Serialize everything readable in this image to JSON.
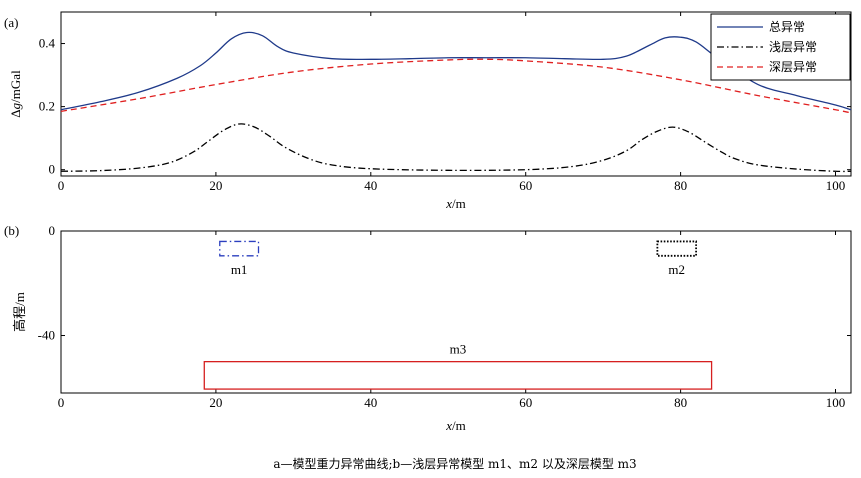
{
  "caption": "a—模型重力异常曲线;b—浅层异常模型 m1、m2 以及深层模型 m3",
  "chart_data": [
    {
      "type": "line",
      "panel_label": "(a)",
      "xlabel": "x/m",
      "ylabel": "Δg/mGal",
      "xlim": [
        0,
        102
      ],
      "ylim": [
        -0.02,
        0.5
      ],
      "xticks": [
        0,
        20,
        40,
        60,
        80,
        100
      ],
      "yticks": [
        0,
        0.2,
        0.4
      ],
      "xtick_labels": [
        "0",
        "20",
        "40",
        "60",
        "80",
        "100"
      ],
      "ytick_labels": [
        "0",
        "0.2",
        "0.4"
      ],
      "legend_position": "top-right",
      "series": [
        {
          "name": "总异常",
          "color": "#1f3a8a",
          "style": "solid",
          "x": [
            0,
            5,
            10,
            15,
            18,
            20,
            22,
            24,
            26,
            28,
            30,
            35,
            40,
            45,
            50,
            55,
            60,
            65,
            70,
            73,
            76,
            78,
            80,
            82,
            85,
            90,
            95,
            100,
            102
          ],
          "y": [
            0.19,
            0.215,
            0.245,
            0.29,
            0.33,
            0.37,
            0.415,
            0.435,
            0.425,
            0.39,
            0.37,
            0.352,
            0.35,
            0.352,
            0.355,
            0.355,
            0.355,
            0.352,
            0.35,
            0.36,
            0.395,
            0.418,
            0.42,
            0.405,
            0.35,
            0.27,
            0.235,
            0.205,
            0.19
          ]
        },
        {
          "name": "浅层异常",
          "color": "#000000",
          "style": "dashdot",
          "x": [
            0,
            5,
            10,
            14,
            17,
            19,
            21,
            23,
            25,
            27,
            29,
            32,
            35,
            40,
            50,
            60,
            66,
            70,
            73,
            75,
            77,
            79,
            81,
            83,
            85,
            87,
            90,
            95,
            100,
            102
          ],
          "y": [
            -0.005,
            -0.003,
            0.005,
            0.022,
            0.055,
            0.09,
            0.125,
            0.145,
            0.135,
            0.105,
            0.07,
            0.035,
            0.015,
            0.003,
            -0.002,
            0.0,
            0.01,
            0.03,
            0.06,
            0.095,
            0.122,
            0.135,
            0.12,
            0.09,
            0.06,
            0.035,
            0.015,
            0.002,
            -0.005,
            -0.005
          ]
        },
        {
          "name": "深层异常",
          "color": "#e02020",
          "style": "dashed",
          "x": [
            0,
            10,
            20,
            30,
            40,
            50,
            55,
            60,
            70,
            80,
            90,
            100,
            102
          ],
          "y": [
            0.185,
            0.225,
            0.27,
            0.31,
            0.335,
            0.348,
            0.35,
            0.345,
            0.325,
            0.285,
            0.235,
            0.19,
            0.18
          ]
        }
      ]
    },
    {
      "type": "diagram",
      "panel_label": "(b)",
      "xlabel": "x/m",
      "ylabel": "高程/m",
      "xlim": [
        0,
        102
      ],
      "ylim": [
        -62,
        0
      ],
      "xticks": [
        0,
        20,
        40,
        60,
        80,
        100
      ],
      "yticks": [
        0,
        -40
      ],
      "xtick_labels": [
        "0",
        "20",
        "40",
        "60",
        "80",
        "100"
      ],
      "ytick_labels": [
        "0",
        "-40"
      ],
      "models": [
        {
          "name": "m1",
          "x0": 20.5,
          "x1": 25.5,
          "top": -4,
          "bottom": -9.5,
          "color": "#2b3fbf",
          "style": "dashdot"
        },
        {
          "name": "m2",
          "x0": 77,
          "x1": 82,
          "top": -4,
          "bottom": -9.5,
          "color": "#000000",
          "style": "dotted"
        },
        {
          "name": "m3",
          "x0": 18.5,
          "x1": 84,
          "top": -50,
          "bottom": -60.5,
          "color": "#d62020",
          "style": "solid"
        }
      ]
    }
  ]
}
